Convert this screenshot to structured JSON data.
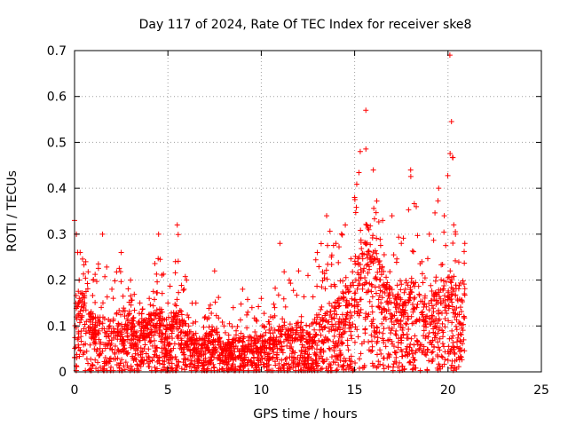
{
  "chart_data": {
    "type": "scatter",
    "title": "Day 117 of 2024, Rate Of TEC Index for receiver ske8",
    "xlabel": "GPS time / hours",
    "ylabel": "ROTI / TECUs",
    "xlim": [
      0,
      25
    ],
    "ylim": [
      0,
      0.7
    ],
    "xticks": [
      0,
      5,
      10,
      15,
      20,
      25
    ],
    "yticks": [
      0,
      0.1,
      0.2,
      0.3,
      0.4,
      0.5,
      0.6,
      0.7
    ],
    "xtick_labels": [
      "0",
      "5",
      "10",
      "15",
      "20",
      "25"
    ],
    "ytick_labels": [
      "0",
      "0.1",
      "0.2",
      "0.3",
      "0.4",
      "0.5",
      "0.6",
      "0.7"
    ],
    "grid": true,
    "marker": "+",
    "color": "#ff0000",
    "series": [
      {
        "name": "ROTI",
        "envelope_note": "dense cloud of points from 0 to 20.9 h; upper envelope approximated below",
        "x": [
          0.0,
          0.1,
          0.3,
          0.6,
          1.0,
          1.5,
          2.0,
          2.5,
          3.0,
          3.5,
          4.0,
          4.5,
          5.0,
          5.5,
          6.0,
          6.5,
          7.0,
          7.5,
          8.0,
          8.5,
          9.0,
          9.5,
          10.0,
          10.5,
          11.0,
          11.5,
          12.0,
          12.5,
          13.0,
          13.5,
          14.0,
          14.5,
          15.0,
          15.3,
          15.6,
          16.0,
          16.5,
          17.0,
          17.5,
          18.0,
          18.3,
          18.6,
          19.0,
          19.5,
          19.8,
          20.1,
          20.4,
          20.9
        ],
        "y_upper": [
          0.33,
          0.3,
          0.26,
          0.24,
          0.2,
          0.3,
          0.18,
          0.26,
          0.2,
          0.15,
          0.16,
          0.3,
          0.15,
          0.32,
          0.2,
          0.15,
          0.12,
          0.22,
          0.1,
          0.14,
          0.18,
          0.14,
          0.16,
          0.12,
          0.28,
          0.2,
          0.22,
          0.21,
          0.26,
          0.34,
          0.28,
          0.32,
          0.38,
          0.48,
          0.57,
          0.44,
          0.33,
          0.34,
          0.28,
          0.44,
          0.36,
          0.24,
          0.3,
          0.4,
          0.34,
          0.69,
          0.3,
          0.28
        ],
        "y_typical": [
          0.08,
          0.1,
          0.12,
          0.1,
          0.08,
          0.08,
          0.07,
          0.09,
          0.08,
          0.07,
          0.08,
          0.09,
          0.07,
          0.1,
          0.06,
          0.05,
          0.05,
          0.06,
          0.04,
          0.05,
          0.05,
          0.05,
          0.05,
          0.05,
          0.07,
          0.06,
          0.07,
          0.06,
          0.08,
          0.1,
          0.1,
          0.11,
          0.15,
          0.2,
          0.22,
          0.18,
          0.14,
          0.12,
          0.1,
          0.14,
          0.12,
          0.1,
          0.1,
          0.12,
          0.12,
          0.14,
          0.12,
          0.12
        ]
      }
    ]
  }
}
